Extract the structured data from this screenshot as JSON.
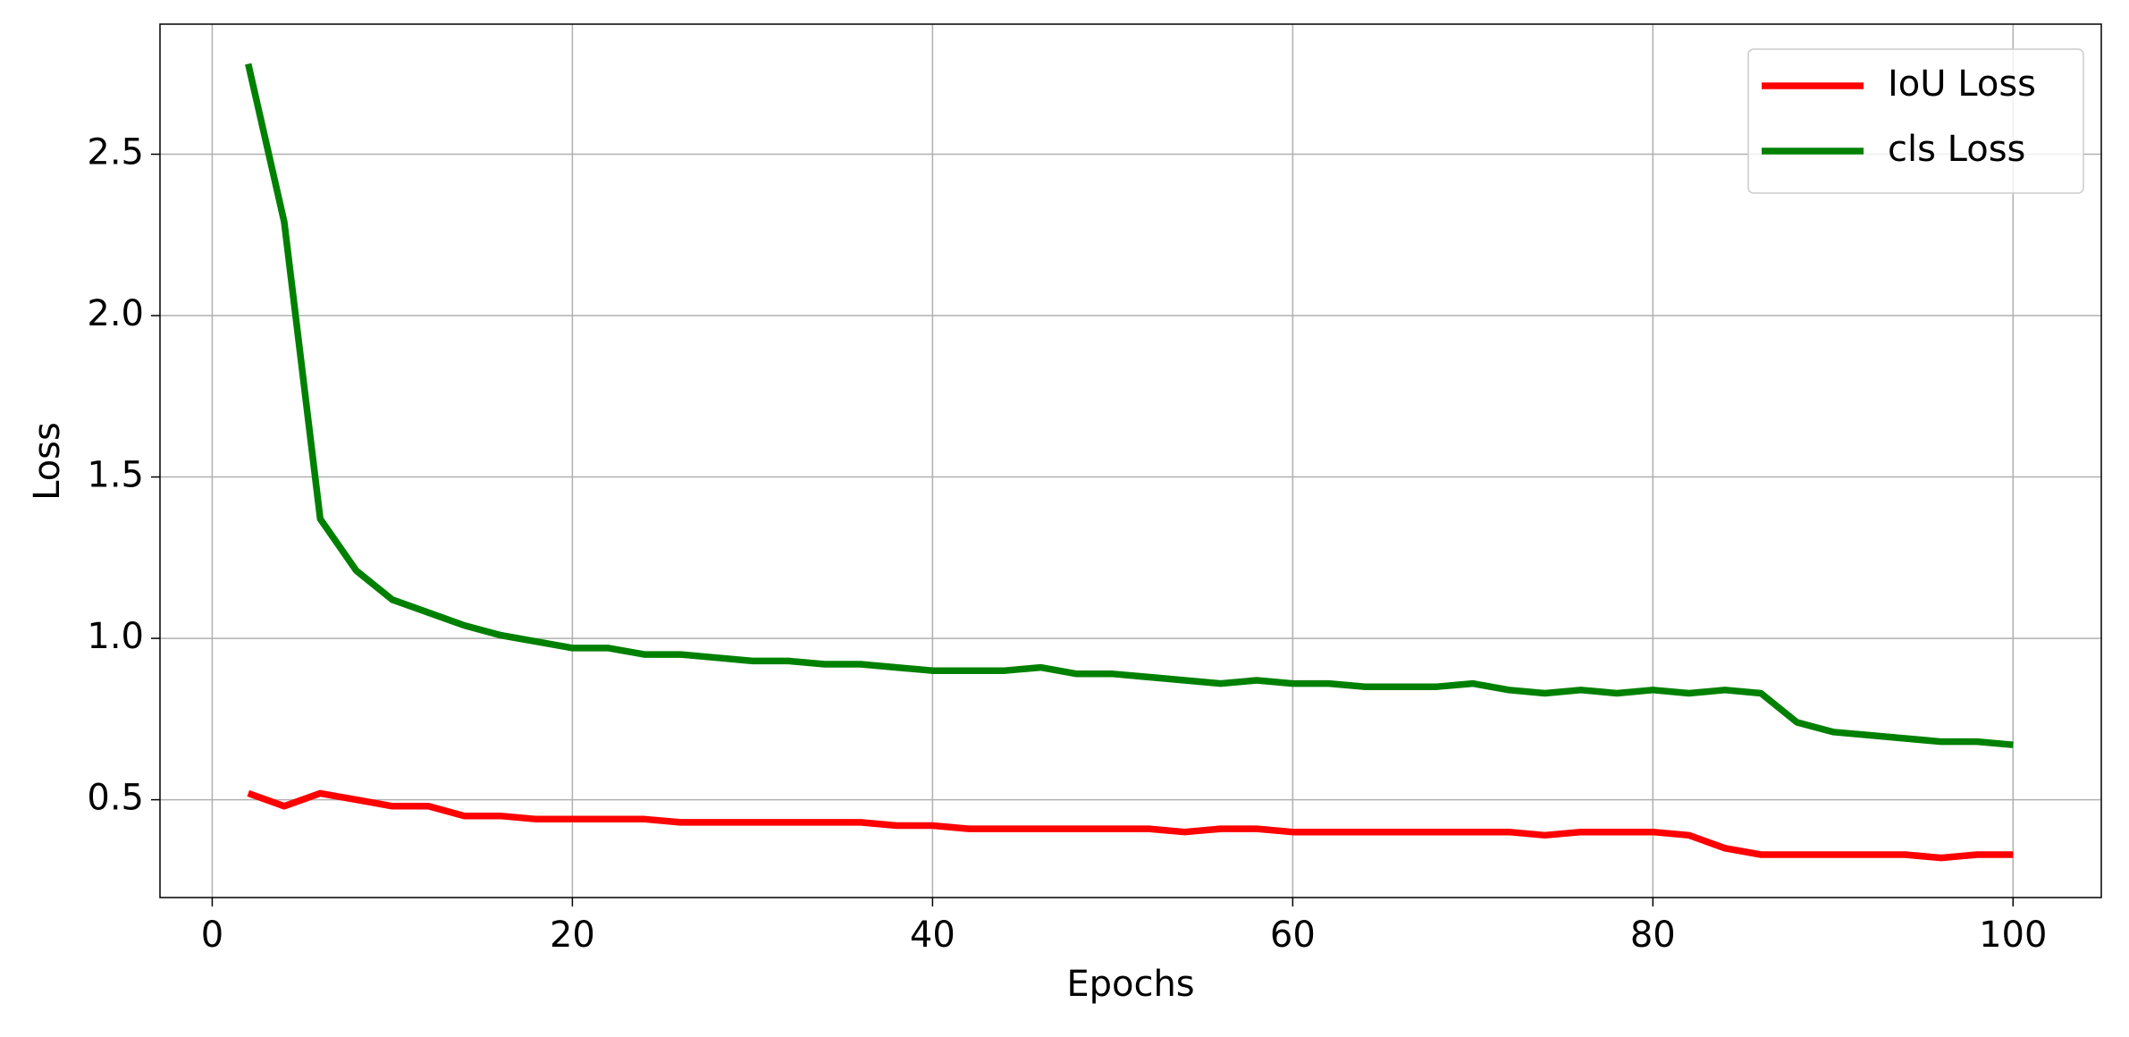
{
  "chart_data": {
    "type": "line",
    "xlabel": "Epochs",
    "ylabel": "Loss",
    "x": [
      2,
      4,
      6,
      8,
      10,
      12,
      14,
      16,
      18,
      20,
      22,
      24,
      26,
      28,
      30,
      32,
      34,
      36,
      38,
      40,
      42,
      44,
      46,
      48,
      50,
      52,
      54,
      56,
      58,
      60,
      62,
      64,
      66,
      68,
      70,
      72,
      74,
      76,
      78,
      80,
      82,
      84,
      86,
      88,
      90,
      92,
      94,
      96,
      98,
      100
    ],
    "series": [
      {
        "name": "IoU Loss",
        "color": "#ff0000",
        "values": [
          0.52,
          0.48,
          0.52,
          0.5,
          0.48,
          0.48,
          0.45,
          0.45,
          0.44,
          0.44,
          0.44,
          0.44,
          0.43,
          0.43,
          0.43,
          0.43,
          0.43,
          0.43,
          0.42,
          0.42,
          0.41,
          0.41,
          0.41,
          0.41,
          0.41,
          0.41,
          0.4,
          0.41,
          0.41,
          0.4,
          0.4,
          0.4,
          0.4,
          0.4,
          0.4,
          0.4,
          0.39,
          0.4,
          0.4,
          0.4,
          0.39,
          0.35,
          0.33,
          0.33,
          0.33,
          0.33,
          0.33,
          0.32,
          0.33,
          0.33
        ]
      },
      {
        "name": "cls Loss",
        "color": "#008000",
        "values": [
          2.78,
          2.29,
          1.37,
          1.21,
          1.12,
          1.08,
          1.04,
          1.01,
          0.99,
          0.97,
          0.97,
          0.95,
          0.95,
          0.94,
          0.93,
          0.93,
          0.92,
          0.92,
          0.91,
          0.9,
          0.9,
          0.9,
          0.91,
          0.89,
          0.89,
          0.88,
          0.87,
          0.86,
          0.87,
          0.86,
          0.86,
          0.85,
          0.85,
          0.85,
          0.86,
          0.84,
          0.83,
          0.84,
          0.83,
          0.84,
          0.83,
          0.84,
          0.83,
          0.74,
          0.71,
          0.7,
          0.69,
          0.68,
          0.68,
          0.67
        ]
      }
    ],
    "xlim": [
      -2.9,
      104.9
    ],
    "ylim": [
      0.197,
      2.903
    ],
    "xticks": [
      0,
      20,
      40,
      60,
      80,
      100
    ],
    "yticks": [
      0.5,
      {
        "value": 1,
        "label": "1.0"
      },
      1.5,
      {
        "value": 2,
        "label": "2.0"
      },
      2.5
    ],
    "grid": true,
    "legend": "upper right"
  }
}
